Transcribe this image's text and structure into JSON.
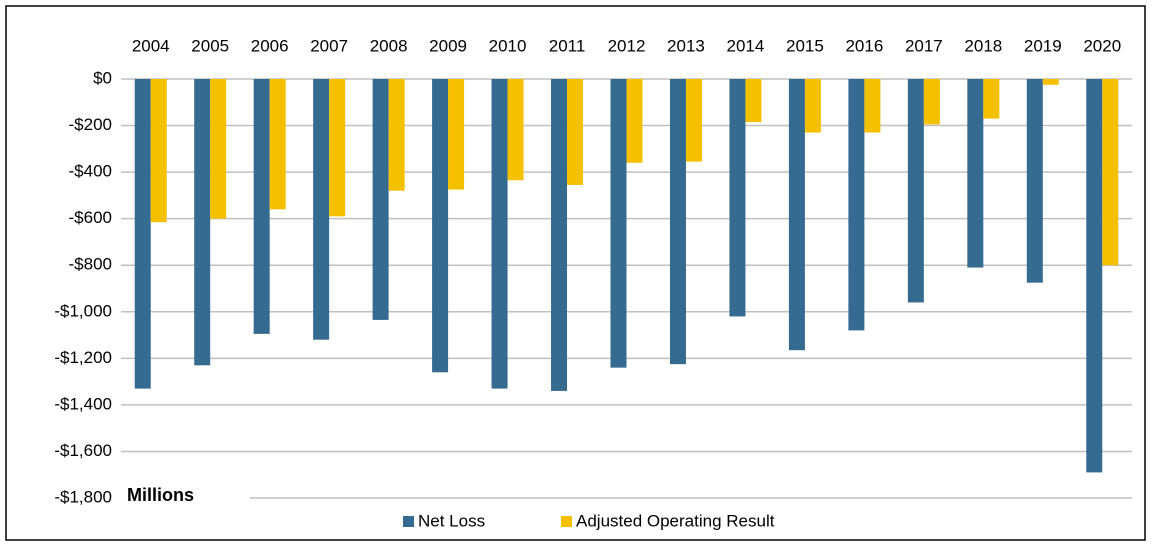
{
  "chart_data": {
    "type": "bar",
    "categories": [
      "2004",
      "2005",
      "2006",
      "2007",
      "2008",
      "2009",
      "2010",
      "2011",
      "2012",
      "2013",
      "2014",
      "2015",
      "2016",
      "2017",
      "2018",
      "2019",
      "2020"
    ],
    "series": [
      {
        "name": "Net Loss",
        "color": "#356a91",
        "values": [
          -1330,
          -1230,
          -1095,
          -1120,
          -1035,
          -1260,
          -1330,
          -1340,
          -1240,
          -1225,
          -1020,
          -1165,
          -1080,
          -960,
          -810,
          -875,
          -1690
        ]
      },
      {
        "name": "Adjusted Operating Result",
        "color": "#f5c000",
        "values": [
          -615,
          -600,
          -560,
          -590,
          -480,
          -475,
          -435,
          -455,
          -360,
          -355,
          -185,
          -230,
          -230,
          -195,
          -170,
          -25,
          -800
        ]
      }
    ],
    "ylim": [
      -1800,
      0
    ],
    "yticks": [
      {
        "value": 0,
        "label": "$0"
      },
      {
        "value": -200,
        "label": "-$200"
      },
      {
        "value": -400,
        "label": "-$400"
      },
      {
        "value": -600,
        "label": "-$600"
      },
      {
        "value": -800,
        "label": "-$800"
      },
      {
        "value": -1000,
        "label": "-$1,000"
      },
      {
        "value": -1200,
        "label": "-$1,200"
      },
      {
        "value": -1400,
        "label": "-$1,400"
      },
      {
        "value": -1600,
        "label": "-$1,600"
      },
      {
        "value": -1800,
        "label": "-$1,800"
      }
    ],
    "y_axis_label": "Millions",
    "grid": true,
    "legend": "bottom"
  }
}
